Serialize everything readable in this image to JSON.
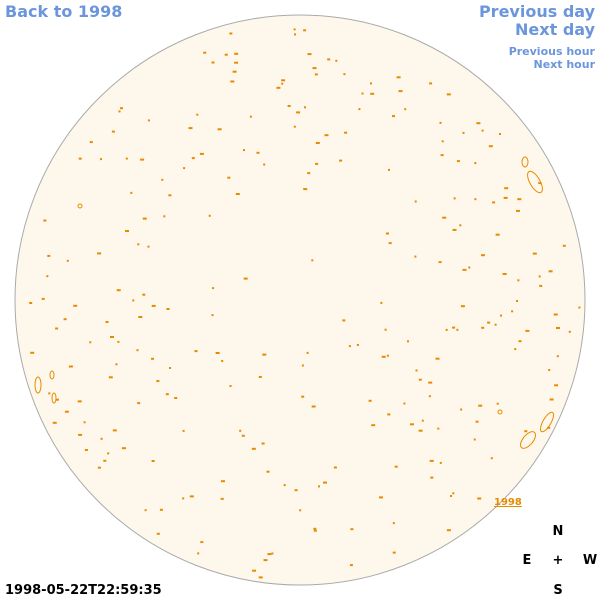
{
  "nav": {
    "back": "Back to 1998",
    "previous_day": "Previous day",
    "next_day": "Next day",
    "previous_hour": "Previous hour",
    "next_hour": "Next hour"
  },
  "timestamp": "1998-05-22T22:59:35",
  "disk_label": "1998",
  "compass": {
    "north": "N",
    "east": "E",
    "center": "+",
    "west": "W",
    "south": "S"
  }
}
